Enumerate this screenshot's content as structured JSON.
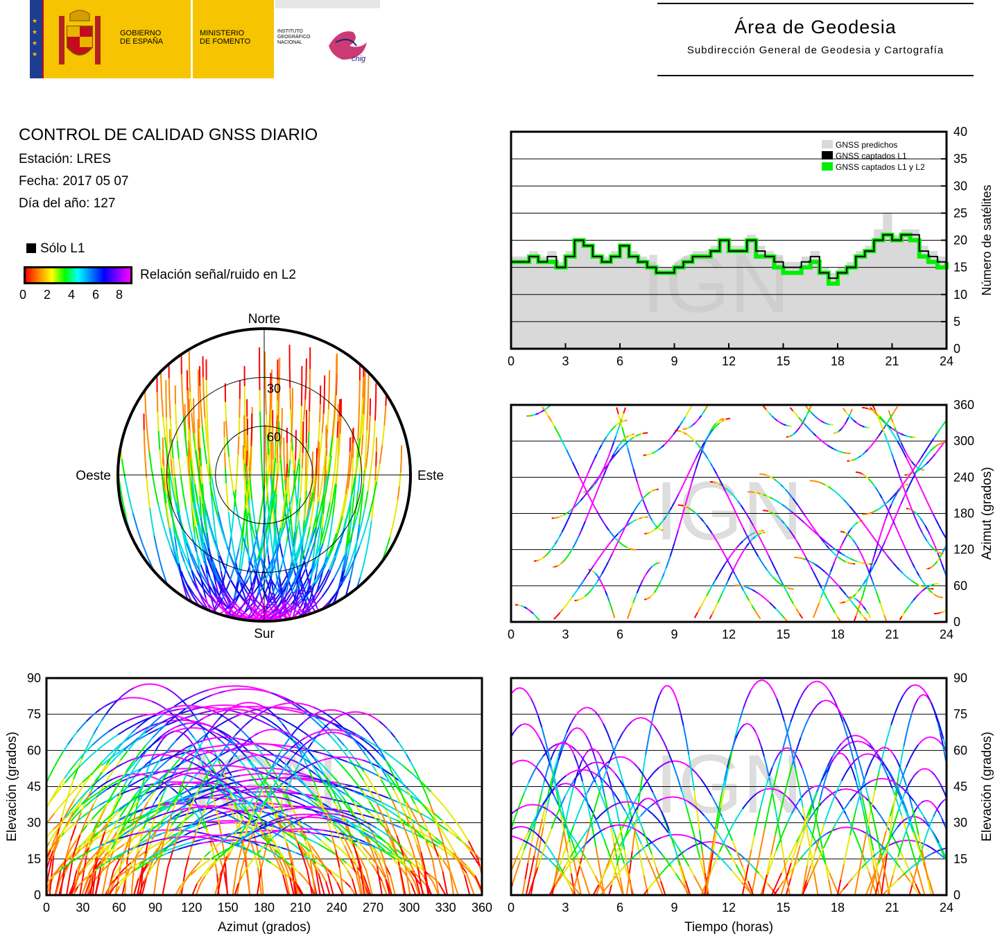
{
  "header": {
    "gobierno_line1": "GOBIERNO",
    "gobierno_line2": "DE ESPAÑA",
    "ministerio_line1": "MINISTERIO",
    "ministerio_line2": "DE FOMENTO",
    "instituto_line1": "INSTITUTO",
    "instituto_line2": "GEOGRÁFICO",
    "instituto_line3": "NACIONAL",
    "cnig": "cnig",
    "area_title": "Área de Geodesia",
    "area_subtitle": "Subdirección General de Geodesia y Cartografía"
  },
  "report": {
    "title": "CONTROL DE CALIDAD GNSS DIARIO",
    "station": "Estación: LRES",
    "date": "Fecha: 2017 05 07",
    "doy": "Día del año: 127",
    "legend_l1": "Sólo L1",
    "snr_label": "Relación señal/ruido en L2",
    "snr_ticks": [
      "0",
      "2",
      "4",
      "6",
      "8"
    ]
  },
  "colors": {
    "predicted": "#d9d9d9",
    "l1": "#000000",
    "l1l2": "#00ee00",
    "grid": "#000000"
  },
  "watermark": "IGN",
  "chart_data": [
    {
      "type": "area",
      "id": "satellites",
      "ylabel": "Número de satélites",
      "ylim": [
        0,
        40
      ],
      "xlim": [
        0,
        24
      ],
      "xticks": [
        "0",
        "3",
        "6",
        "9",
        "12",
        "15",
        "18",
        "21",
        "24"
      ],
      "yticks": [
        "0",
        "5",
        "10",
        "15",
        "20",
        "25",
        "30",
        "35",
        "40"
      ],
      "grid": true,
      "legend": "top-right",
      "x": [
        0,
        0.5,
        1,
        1.5,
        2,
        2.5,
        3,
        3.5,
        4,
        4.5,
        5,
        5.5,
        6,
        6.5,
        7,
        7.5,
        8,
        8.5,
        9,
        9.5,
        10,
        10.5,
        11,
        11.5,
        12,
        12.5,
        13,
        13.5,
        14,
        14.5,
        15,
        15.5,
        16,
        16.5,
        17,
        17.5,
        18,
        18.5,
        19,
        19.5,
        20,
        20.5,
        21,
        21.5,
        22,
        22.5,
        23,
        23.5,
        24
      ],
      "series": [
        {
          "name": "GNSS predichos",
          "values": [
            17,
            17,
            18,
            17,
            18,
            16,
            18,
            20,
            19,
            17,
            17,
            18,
            19,
            18,
            17,
            16,
            15,
            15,
            16,
            17,
            18,
            18,
            19,
            20,
            19,
            19,
            21,
            19,
            18,
            17,
            16,
            16,
            17,
            18,
            15,
            14,
            15,
            16,
            18,
            19,
            22,
            25,
            21,
            22,
            22,
            19,
            18,
            17,
            17
          ]
        },
        {
          "name": "GNSS captados L1",
          "values": [
            16,
            16,
            17,
            16,
            17,
            15,
            17,
            20,
            19,
            17,
            16,
            17,
            19,
            17,
            16,
            15,
            14,
            14,
            15,
            16,
            17,
            17,
            18,
            20,
            18,
            18,
            20,
            18,
            17,
            16,
            15,
            15,
            16,
            17,
            14,
            13,
            14,
            15,
            17,
            18,
            20,
            21,
            20,
            21,
            21,
            18,
            17,
            16,
            16
          ]
        },
        {
          "name": "GNSS captados L1 y L2",
          "values": [
            16,
            16,
            17,
            16,
            16,
            15,
            17,
            20,
            19,
            17,
            16,
            17,
            19,
            17,
            16,
            15,
            14,
            14,
            15,
            16,
            17,
            17,
            18,
            20,
            18,
            18,
            20,
            17,
            17,
            15,
            14,
            14,
            15,
            16,
            14,
            12,
            14,
            15,
            17,
            18,
            20,
            21,
            20,
            21,
            20,
            17,
            16,
            15,
            16
          ]
        }
      ]
    },
    {
      "type": "scatter",
      "id": "skyplot",
      "labels": {
        "north": "Norte",
        "south": "Sur",
        "east": "Este",
        "west": "Oeste"
      },
      "rings": [
        "30",
        "60"
      ],
      "legend": "none"
    },
    {
      "type": "scatter",
      "id": "azimuth_time",
      "ylabel": "Azimut (grados)",
      "xlim": [
        0,
        24
      ],
      "ylim": [
        0,
        360
      ],
      "xticks": [
        "0",
        "3",
        "6",
        "9",
        "12",
        "15",
        "18",
        "21",
        "24"
      ],
      "yticks": [
        "0",
        "60",
        "120",
        "180",
        "240",
        "300",
        "360"
      ],
      "grid": true
    },
    {
      "type": "scatter",
      "id": "elevation_azimuth",
      "xlabel": "Azimut (grados)",
      "ylabel": "Elevación (grados)",
      "xlim": [
        0,
        360
      ],
      "ylim": [
        0,
        90
      ],
      "xticks": [
        "0",
        "30",
        "60",
        "90",
        "120",
        "150",
        "180",
        "210",
        "240",
        "270",
        "300",
        "330",
        "360"
      ],
      "yticks": [
        "0",
        "15",
        "30",
        "45",
        "60",
        "75",
        "90"
      ],
      "grid": true
    },
    {
      "type": "scatter",
      "id": "elevation_time",
      "xlabel": "Tiempo (horas)",
      "ylabel": "Elevación (grados)",
      "xlim": [
        0,
        24
      ],
      "ylim": [
        0,
        90
      ],
      "xticks": [
        "0",
        "3",
        "6",
        "9",
        "12",
        "15",
        "18",
        "21",
        "24"
      ],
      "yticks": [
        "0",
        "15",
        "30",
        "45",
        "60",
        "75",
        "90"
      ],
      "grid": true
    }
  ]
}
